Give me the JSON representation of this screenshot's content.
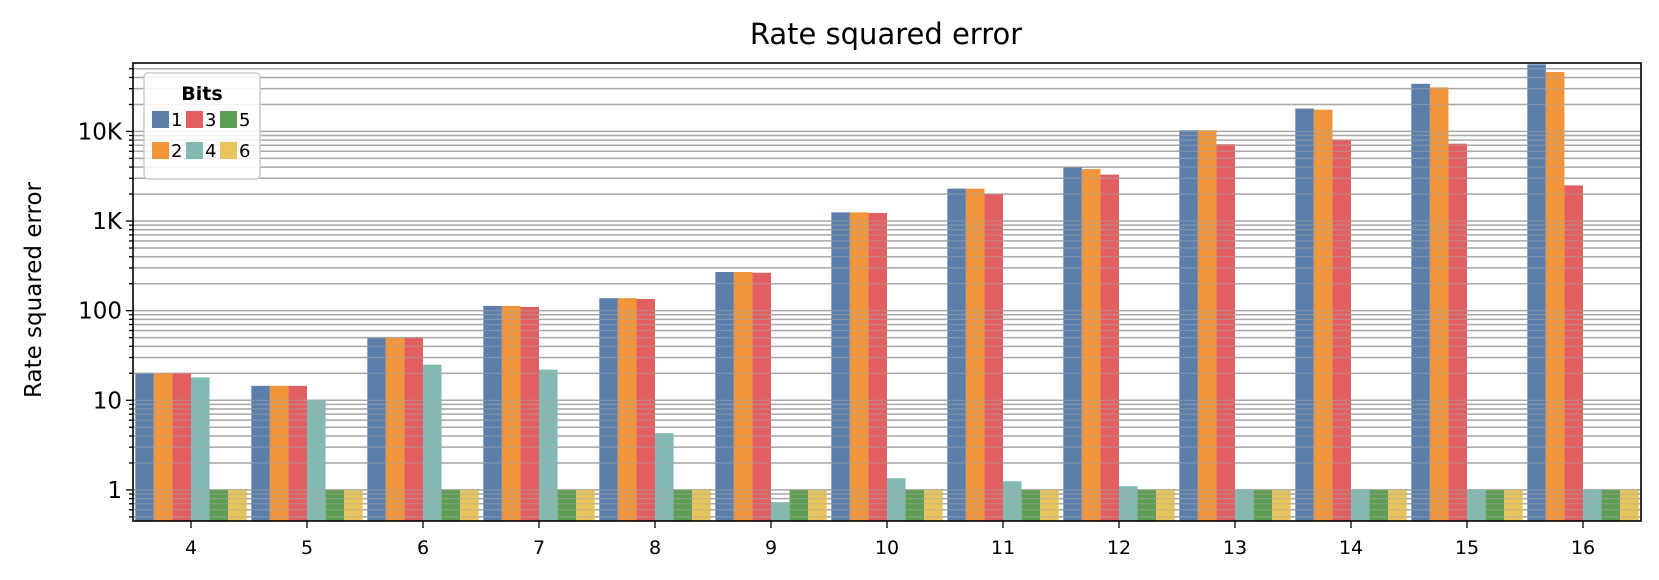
{
  "chart_data": {
    "type": "bar",
    "title": "Rate squared error",
    "xlabel": "",
    "ylabel": "Rate squared error",
    "yscale": "log",
    "ylim": [
      0.45,
      58000
    ],
    "y_ticks": [
      {
        "value": 1,
        "label": "1"
      },
      {
        "value": 10,
        "label": "10"
      },
      {
        "value": 100,
        "label": "100"
      },
      {
        "value": 1000,
        "label": "1K"
      },
      {
        "value": 10000,
        "label": "10K"
      }
    ],
    "grid": "y-major-and-minor",
    "categories": [
      "4",
      "5",
      "6",
      "7",
      "8",
      "9",
      "10",
      "11",
      "12",
      "13",
      "14",
      "15",
      "16"
    ],
    "legend": {
      "title": "Bits",
      "placement": "top-left"
    },
    "series": [
      {
        "name": "1",
        "color": "#5b7faa",
        "values": [
          20,
          14.5,
          50,
          113,
          138,
          270,
          1250,
          2300,
          4000,
          10300,
          18000,
          34000,
          56000
        ]
      },
      {
        "name": "2",
        "color": "#f0953a",
        "values": [
          20,
          14.5,
          50,
          113,
          138,
          270,
          1250,
          2300,
          3800,
          10300,
          17500,
          31000,
          46000
        ]
      },
      {
        "name": "3",
        "color": "#e15f61",
        "values": [
          20,
          14.5,
          50,
          110,
          135,
          265,
          1230,
          2000,
          3300,
          7200,
          8100,
          7300,
          2500
        ]
      },
      {
        "name": "4",
        "color": "#83b9b3",
        "values": [
          18,
          10,
          25,
          22,
          4.3,
          0.73,
          1.35,
          1.25,
          1.1,
          1.0,
          1.0,
          1.0,
          1.0
        ]
      },
      {
        "name": "5",
        "color": "#5e9e52",
        "values": [
          1.0,
          1.0,
          1.0,
          1.0,
          1.0,
          1.0,
          1.0,
          1.0,
          1.0,
          1.0,
          1.0,
          1.0,
          1.0
        ]
      },
      {
        "name": "6",
        "color": "#e8c55a",
        "values": [
          1.0,
          1.0,
          1.0,
          1.0,
          1.0,
          1.0,
          1.0,
          1.0,
          1.0,
          1.0,
          1.0,
          1.0,
          1.0
        ]
      }
    ]
  }
}
